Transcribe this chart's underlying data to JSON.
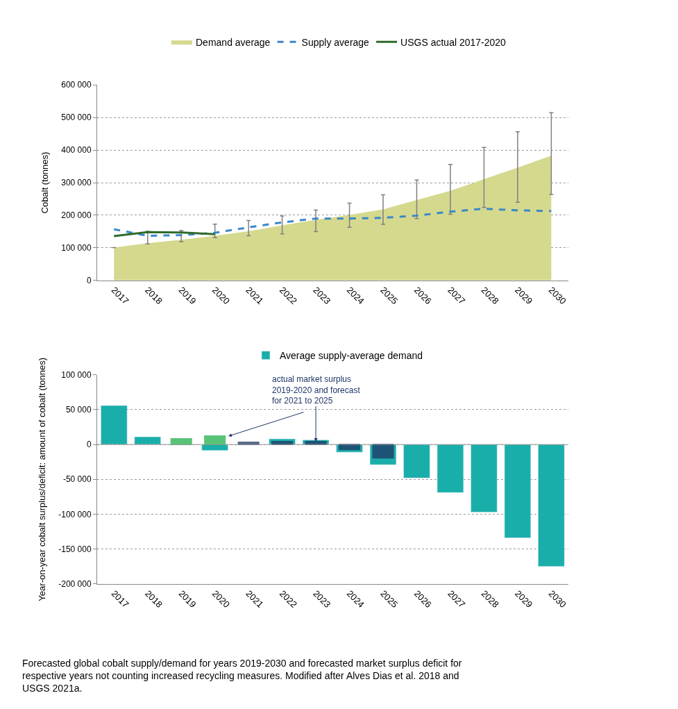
{
  "chart_data": [
    {
      "type": "area",
      "ylabel": "Cobalt (tonnes)",
      "categories": [
        "2017",
        "2018",
        "2019",
        "2020",
        "2021",
        "2022",
        "2023",
        "2024",
        "2025",
        "2026",
        "2027",
        "2028",
        "2029",
        "2030"
      ],
      "series": [
        {
          "name": "Demand average",
          "type": "area",
          "color": "#d5d98e",
          "values": [
            101000,
            114000,
            125000,
            137000,
            151000,
            169000,
            186000,
            201000,
            218000,
            247000,
            275000,
            311000,
            346000,
            383000
          ],
          "errors": [
            null,
            [
              112000,
              151000
            ],
            [
              119000,
              153000
            ],
            [
              131000,
              173000
            ],
            [
              137000,
              184000
            ],
            [
              143000,
              198000
            ],
            [
              150000,
              216000
            ],
            [
              163000,
              237000
            ],
            [
              172000,
              263000
            ],
            [
              190000,
              308000
            ],
            [
              203000,
              356000
            ],
            [
              224000,
              408000
            ],
            [
              240000,
              456000
            ],
            [
              264000,
              515000
            ]
          ]
        },
        {
          "name": "Supply average",
          "type": "line",
          "line_style": "dashed",
          "color": "#3a87c8",
          "values": [
            157000,
            137000,
            139000,
            146000,
            163000,
            178000,
            190000,
            190000,
            192000,
            199000,
            211000,
            220000,
            215000,
            213000
          ]
        },
        {
          "name": "USGS actual 2017-2020",
          "type": "line",
          "line_style": "solid",
          "color": "#2e6b2a",
          "values": [
            136000,
            148000,
            147000,
            142000,
            null,
            null,
            null,
            null,
            null,
            null,
            null,
            null,
            null,
            null
          ]
        }
      ],
      "ylim": [
        0,
        600000
      ],
      "yticks": [
        0,
        {
          "value": 100000,
          "label": "100 000"
        },
        {
          "value": 200000,
          "label": "200 000"
        },
        {
          "value": 300000,
          "label": "300 000"
        },
        {
          "value": 400000,
          "label": "400 000"
        },
        {
          "value": 500000,
          "label": "500 000"
        },
        {
          "value": 600000,
          "label": "600 000"
        }
      ],
      "grid": "y",
      "legend": "top",
      "marker": "none"
    },
    {
      "type": "bar",
      "ylabel": "Year-on-year cobalt surplus/deficit: amount of cobalt (tonnes)",
      "categories": [
        "2017",
        "2018",
        "2019",
        "2020",
        "2021",
        "2022",
        "2023",
        "2024",
        "2025",
        "2026",
        "2027",
        "2028",
        "2029",
        "2030"
      ],
      "series": [
        {
          "name": "Average supply-average demand",
          "color": "#1aaeaa",
          "values": [
            56000,
            11000,
            null,
            -8500,
            null,
            8000,
            6500,
            -11000,
            -29000,
            -48000,
            -69000,
            -97000,
            -134000,
            -175000
          ]
        },
        {
          "colors": [
            "#1aaeaa",
            "#1aaeaa",
            "#22b04b",
            "#22b04b",
            "#1f3566",
            "#1f3566",
            "#1f3566",
            "#1f3566",
            "#1f3566",
            "#1aaeaa",
            "#1aaeaa",
            "#1aaeaa",
            "#1aaeaa",
            "#1aaeaa"
          ],
          "values": [
            null,
            null,
            8000,
            12000,
            3000,
            4000,
            4000,
            -7000,
            -19000,
            null,
            null,
            null,
            null,
            null
          ]
        }
      ],
      "ylim": [
        -200000,
        100000
      ],
      "yticks": [
        {
          "value": -200000,
          "label": "-200 000"
        },
        {
          "value": -150000,
          "label": "-150 000"
        },
        {
          "value": -100000,
          "label": "-100 000"
        },
        {
          "value": -50000,
          "label": "-50 000"
        },
        0,
        {
          "value": 50000,
          "label": "50 000"
        },
        {
          "value": 100000,
          "label": "100 000"
        }
      ],
      "grid": "y",
      "legend": "top",
      "annotations": [
        {
          "text": "actual market surplus 2019-2020 and forecast for 2021 to 2025",
          "x": "2023",
          "y": 4000
        },
        "Forecasted global cobalt supply/demand for years 2019-2030 and forecasted market surplus deficit for respective years not counting increased recycling measures. Modified after Alves Dias et al. 2018 and USGS 2021a."
      ]
    }
  ]
}
